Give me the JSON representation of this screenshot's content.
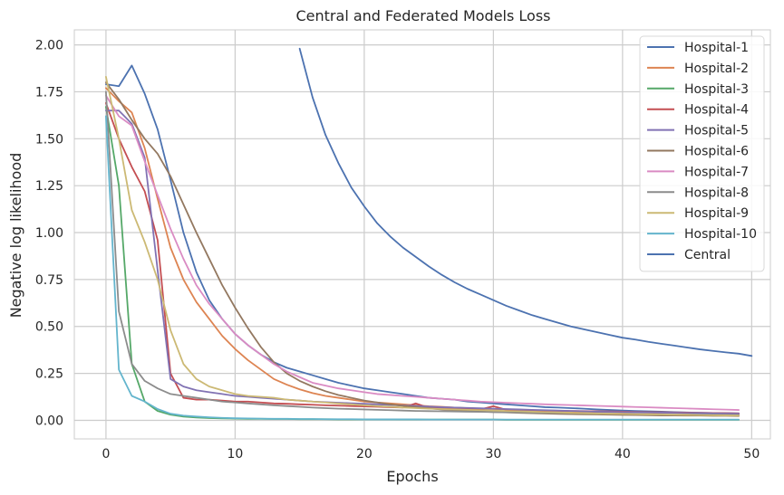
{
  "chart_data": {
    "type": "line",
    "title": "Central and Federated Models Loss",
    "xlabel": "Epochs",
    "ylabel": "Negative log likelihood",
    "xlim": [
      -2.45,
      51.45
    ],
    "ylim": [
      -0.099,
      2.08
    ],
    "xticks": [
      0,
      10,
      20,
      30,
      40,
      50
    ],
    "yticks": [
      0.0,
      0.25,
      0.5,
      0.75,
      1.0,
      1.25,
      1.5,
      1.75,
      2.0
    ],
    "xtick_labels": [
      "0",
      "10",
      "20",
      "30",
      "40",
      "50"
    ],
    "ytick_labels": [
      "0.00",
      "0.25",
      "0.50",
      "0.75",
      "1.00",
      "1.25",
      "1.50",
      "1.75",
      "2.00"
    ],
    "grid": true,
    "legend_position": "top-right",
    "series": [
      {
        "name": "Hospital-1",
        "color": "#4c72b0",
        "x_start": 0,
        "values": [
          1.79,
          1.78,
          1.89,
          1.74,
          1.55,
          1.28,
          1.0,
          0.79,
          0.64,
          0.54,
          0.46,
          0.4,
          0.35,
          0.31,
          0.28,
          0.26,
          0.24,
          0.22,
          0.2,
          0.185,
          0.17,
          0.16,
          0.15,
          0.14,
          0.13,
          0.12,
          0.115,
          0.11,
          0.1,
          0.095,
          0.09,
          0.085,
          0.08,
          0.075,
          0.07,
          0.068,
          0.065,
          0.062,
          0.058,
          0.055,
          0.052,
          0.05,
          0.048,
          0.046,
          0.044,
          0.042,
          0.04,
          0.039,
          0.038,
          0.037
        ]
      },
      {
        "name": "Hospital-2",
        "color": "#dd8452",
        "x_start": 0,
        "values": [
          1.77,
          1.7,
          1.64,
          1.45,
          1.18,
          0.92,
          0.75,
          0.63,
          0.54,
          0.45,
          0.38,
          0.32,
          0.27,
          0.22,
          0.19,
          0.165,
          0.145,
          0.13,
          0.12,
          0.11,
          0.1,
          0.095,
          0.09,
          0.085,
          0.08,
          0.075,
          0.072,
          0.068,
          0.065,
          0.062,
          0.06,
          0.058,
          0.055,
          0.053,
          0.051,
          0.049,
          0.047,
          0.046,
          0.045,
          0.044,
          0.043,
          0.042,
          0.041,
          0.04,
          0.039,
          0.038,
          0.037,
          0.036,
          0.035,
          0.034
        ]
      },
      {
        "name": "Hospital-3",
        "color": "#55a868",
        "x_start": 0,
        "values": [
          1.67,
          1.25,
          0.3,
          0.1,
          0.05,
          0.03,
          0.02,
          0.015,
          0.012,
          0.01,
          0.009,
          0.008,
          0.008,
          0.007,
          0.007,
          0.006,
          0.006,
          0.006,
          0.005,
          0.005,
          0.005,
          0.005,
          0.005,
          0.004,
          0.004,
          0.004,
          0.004,
          0.004,
          0.004,
          0.004,
          0.004,
          0.003,
          0.003,
          0.003,
          0.003,
          0.003,
          0.003,
          0.003,
          0.003,
          0.003,
          0.003,
          0.003,
          0.003,
          0.003,
          0.003,
          0.003,
          0.003,
          0.003,
          0.003,
          0.003
        ]
      },
      {
        "name": "Hospital-4",
        "color": "#c44e52",
        "x_start": 0,
        "values": [
          1.69,
          1.5,
          1.35,
          1.22,
          0.96,
          0.25,
          0.12,
          0.11,
          0.11,
          0.105,
          0.1,
          0.1,
          0.095,
          0.09,
          0.088,
          0.085,
          0.083,
          0.08,
          0.078,
          0.076,
          0.074,
          0.072,
          0.07,
          0.068,
          0.09,
          0.066,
          0.064,
          0.062,
          0.06,
          0.058,
          0.075,
          0.056,
          0.054,
          0.053,
          0.052,
          0.051,
          0.05,
          0.049,
          0.048,
          0.047,
          0.046,
          0.045,
          0.044,
          0.043,
          0.042,
          0.041,
          0.04,
          0.039,
          0.038,
          0.037
        ]
      },
      {
        "name": "Hospital-5",
        "color": "#8172b3",
        "x_start": 0,
        "values": [
          1.65,
          1.65,
          1.58,
          1.4,
          0.8,
          0.22,
          0.18,
          0.16,
          0.15,
          0.14,
          0.13,
          0.125,
          0.12,
          0.115,
          0.11,
          0.105,
          0.1,
          0.097,
          0.094,
          0.091,
          0.088,
          0.085,
          0.082,
          0.079,
          0.076,
          0.073,
          0.07,
          0.068,
          0.066,
          0.064,
          0.062,
          0.06,
          0.058,
          0.056,
          0.054,
          0.052,
          0.05,
          0.048,
          0.046,
          0.045,
          0.044,
          0.043,
          0.042,
          0.041,
          0.04,
          0.039,
          0.038,
          0.037,
          0.036,
          0.035
        ]
      },
      {
        "name": "Hospital-6",
        "color": "#937860",
        "x_start": 0,
        "values": [
          1.8,
          1.71,
          1.6,
          1.5,
          1.42,
          1.3,
          1.15,
          1.0,
          0.86,
          0.72,
          0.6,
          0.49,
          0.39,
          0.31,
          0.25,
          0.21,
          0.18,
          0.155,
          0.135,
          0.12,
          0.105,
          0.095,
          0.085,
          0.077,
          0.07,
          0.064,
          0.058,
          0.054,
          0.05,
          0.047,
          0.044,
          0.042,
          0.04,
          0.038,
          0.036,
          0.034,
          0.033,
          0.032,
          0.031,
          0.03,
          0.029,
          0.028,
          0.027,
          0.026,
          0.026,
          0.025,
          0.025,
          0.024,
          0.024,
          0.023
        ]
      },
      {
        "name": "Hospital-7",
        "color": "#da8bc3",
        "x_start": 0,
        "values": [
          1.73,
          1.62,
          1.57,
          1.38,
          1.2,
          1.02,
          0.86,
          0.72,
          0.62,
          0.54,
          0.46,
          0.4,
          0.35,
          0.3,
          0.26,
          0.23,
          0.2,
          0.185,
          0.17,
          0.16,
          0.15,
          0.14,
          0.135,
          0.13,
          0.125,
          0.12,
          0.115,
          0.11,
          0.105,
          0.1,
          0.097,
          0.094,
          0.091,
          0.088,
          0.085,
          0.083,
          0.081,
          0.079,
          0.077,
          0.075,
          0.073,
          0.071,
          0.069,
          0.067,
          0.065,
          0.063,
          0.061,
          0.059,
          0.057,
          0.055
        ]
      },
      {
        "name": "Hospital-8",
        "color": "#8c8c8c",
        "x_start": 0,
        "values": [
          1.75,
          0.58,
          0.3,
          0.21,
          0.17,
          0.14,
          0.13,
          0.12,
          0.11,
          0.1,
          0.095,
          0.09,
          0.085,
          0.08,
          0.076,
          0.072,
          0.068,
          0.065,
          0.062,
          0.06,
          0.058,
          0.056,
          0.054,
          0.052,
          0.05,
          0.049,
          0.048,
          0.047,
          0.046,
          0.045,
          0.044,
          0.043,
          0.042,
          0.041,
          0.04,
          0.039,
          0.038,
          0.037,
          0.036,
          0.035,
          0.034,
          0.033,
          0.032,
          0.031,
          0.03,
          0.03,
          0.029,
          0.029,
          0.028,
          0.028
        ]
      },
      {
        "name": "Hospital-9",
        "color": "#ccb974",
        "x_start": 0,
        "values": [
          1.83,
          1.5,
          1.12,
          0.95,
          0.75,
          0.48,
          0.3,
          0.22,
          0.18,
          0.16,
          0.14,
          0.13,
          0.125,
          0.12,
          0.11,
          0.105,
          0.1,
          0.095,
          0.09,
          0.085,
          0.08,
          0.076,
          0.072,
          0.068,
          0.065,
          0.062,
          0.06,
          0.058,
          0.056,
          0.054,
          0.052,
          0.05,
          0.048,
          0.046,
          0.044,
          0.042,
          0.04,
          0.038,
          0.036,
          0.035,
          0.034,
          0.033,
          0.032,
          0.031,
          0.03,
          0.029,
          0.028,
          0.027,
          0.026,
          0.025
        ]
      },
      {
        "name": "Hospital-10",
        "color": "#64b5cd",
        "x_start": 0,
        "values": [
          1.62,
          0.27,
          0.13,
          0.1,
          0.06,
          0.035,
          0.025,
          0.02,
          0.016,
          0.013,
          0.011,
          0.01,
          0.009,
          0.008,
          0.008,
          0.007,
          0.007,
          0.006,
          0.006,
          0.006,
          0.005,
          0.005,
          0.005,
          0.005,
          0.005,
          0.004,
          0.004,
          0.004,
          0.004,
          0.004,
          0.004,
          0.004,
          0.004,
          0.004,
          0.004,
          0.004,
          0.004,
          0.004,
          0.004,
          0.004,
          0.004,
          0.004,
          0.004,
          0.004,
          0.004,
          0.004,
          0.004,
          0.004,
          0.004,
          0.004
        ]
      },
      {
        "name": "Central",
        "color": "#4c72b0",
        "x_start": 15,
        "values": [
          1.98,
          1.72,
          1.52,
          1.37,
          1.24,
          1.14,
          1.05,
          0.98,
          0.92,
          0.87,
          0.82,
          0.775,
          0.735,
          0.7,
          0.67,
          0.64,
          0.61,
          0.585,
          0.56,
          0.54,
          0.52,
          0.5,
          0.485,
          0.47,
          0.455,
          0.44,
          0.43,
          0.418,
          0.408,
          0.398,
          0.388,
          0.378,
          0.37,
          0.362,
          0.355,
          0.343
        ]
      }
    ]
  }
}
